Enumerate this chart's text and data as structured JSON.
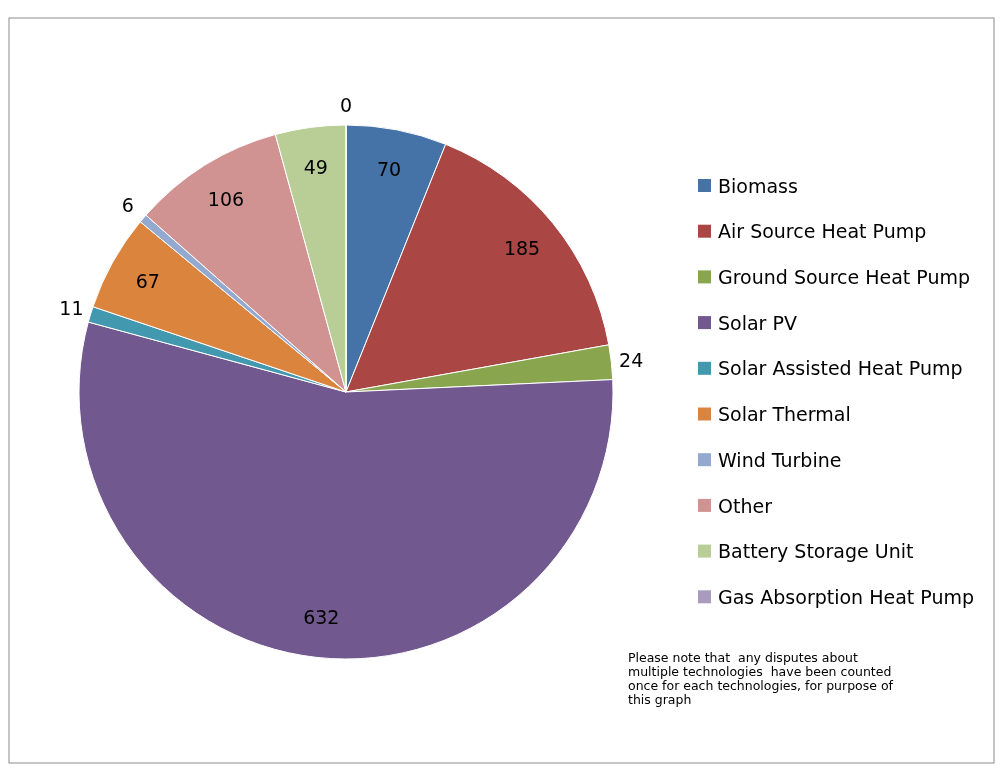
{
  "chart_data": {
    "type": "pie",
    "categories": [
      "Biomass",
      "Air Source Heat Pump",
      "Ground Source Heat Pump",
      "Solar PV",
      "Solar Assisted Heat Pump",
      "Solar Thermal",
      "Wind Turbine",
      "Other",
      "Battery Storage Unit",
      "Gas Absorption Heat Pump"
    ],
    "values": [
      70,
      185,
      24,
      632,
      11,
      67,
      6,
      106,
      49,
      0
    ],
    "colors": [
      "#4572a7",
      "#aa4643",
      "#89a54e",
      "#71588f",
      "#4198af",
      "#db843d",
      "#93a9cf",
      "#d19392",
      "#b9cd96",
      "#a99bbd"
    ],
    "value_labels": [
      "70",
      "185",
      "24",
      "632",
      "11",
      "67",
      "6",
      "106",
      "49",
      "0"
    ],
    "legend": "right",
    "annotations": [
      "Please note that  any disputes about\nmultiple technologies  have been counted\nonce for each technologies, for purpose of\nthis graph"
    ]
  }
}
